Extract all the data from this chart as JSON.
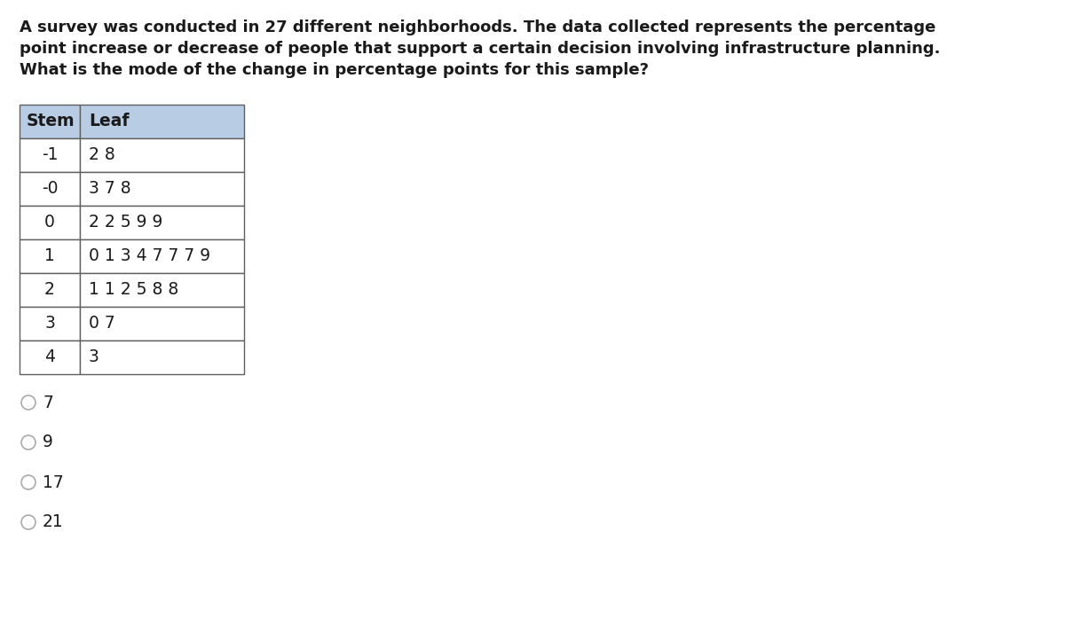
{
  "question_text_lines": [
    "A survey was conducted in 27 different neighborhoods. The data collected represents the percentage",
    "point increase or decrease of people that support a certain decision involving infrastructure planning.",
    "What is the mode of the change in percentage points for this sample?"
  ],
  "table_header": [
    "Stem",
    "Leaf"
  ],
  "table_rows": [
    [
      "-1",
      "2 8"
    ],
    [
      "-0",
      "3 7 8"
    ],
    [
      "0",
      "2 2 5 9 9"
    ],
    [
      "1",
      "0 1 3 4 7 7 7 9"
    ],
    [
      "2",
      "1 1 2 5 8 8"
    ],
    [
      "3",
      "0 7"
    ],
    [
      "4",
      "3"
    ]
  ],
  "header_bg": "#b8cce4",
  "table_border_color": "#606060",
  "answer_choices": [
    "7",
    "9",
    "17",
    "21"
  ],
  "bg_color": "#ffffff",
  "text_color": "#1a1a1a",
  "question_fontsize": 13.0,
  "table_fontsize": 13.5,
  "answer_fontsize": 13.5,
  "radio_color": "#aaaaaa",
  "fig_width": 12.0,
  "fig_height": 6.97,
  "dpi": 100
}
